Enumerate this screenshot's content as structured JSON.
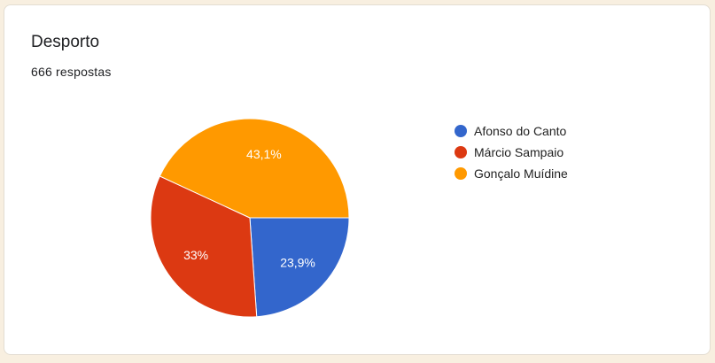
{
  "title": "Desporto",
  "responses": "666 respostas",
  "chart_data": {
    "type": "pie",
    "title": "Desporto",
    "categories": [
      "Afonso do Canto",
      "Márcio Sampaio",
      "Gonçalo Muídine"
    ],
    "values": [
      23.9,
      33,
      43.1
    ],
    "labels": [
      "23,9%",
      "33%",
      "43,1%"
    ],
    "colors": [
      "#3366cc",
      "#dc3912",
      "#ff9900"
    ],
    "legend": "right"
  }
}
